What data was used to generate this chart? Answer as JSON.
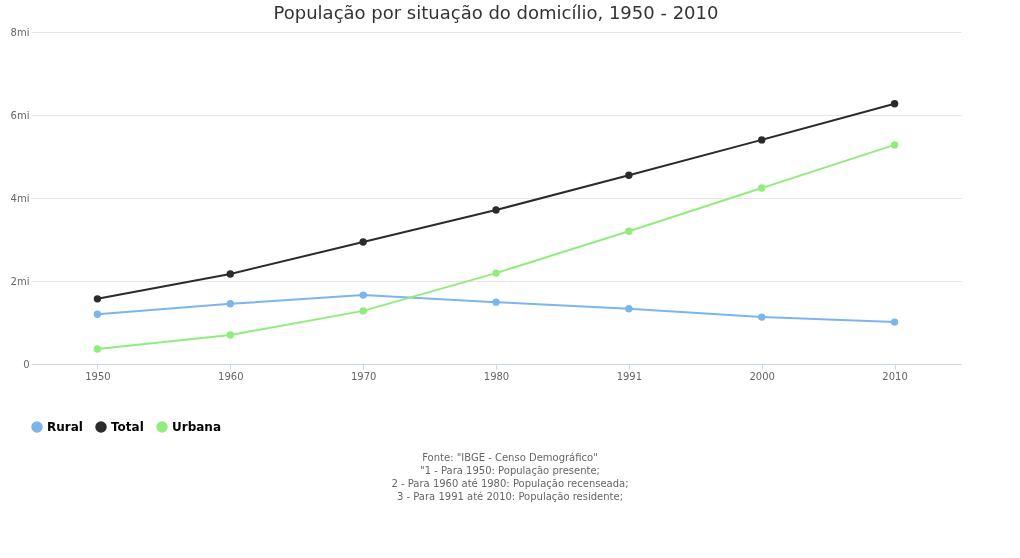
{
  "chart_data": {
    "type": "line",
    "title": "População por situação do domicílio, 1950 - 2010",
    "categories": [
      "1950",
      "1960",
      "1970",
      "1980",
      "1991",
      "2000",
      "2010"
    ],
    "series": [
      {
        "name": "Rural",
        "color": "#7cb5ec",
        "values": [
          1.2,
          1.45,
          1.66,
          1.49,
          1.33,
          1.13,
          1.01
        ]
      },
      {
        "name": "Total",
        "color": "#2b2b2b",
        "values": [
          1.57,
          2.17,
          2.94,
          3.71,
          4.55,
          5.4,
          6.27
        ]
      },
      {
        "name": "Urbana",
        "color": "#90ed7d",
        "values": [
          0.36,
          0.7,
          1.28,
          2.19,
          3.2,
          4.24,
          5.28
        ]
      }
    ],
    "ylim": [
      0,
      8
    ],
    "yticks": [
      0,
      {
        "value": 2,
        "label": "2mi"
      },
      {
        "value": 4,
        "label": "4mi"
      },
      {
        "value": 6,
        "label": "6mi"
      },
      {
        "value": 8,
        "label": "8mi"
      }
    ],
    "grid": "y",
    "legend": "bottom",
    "marker": "circle",
    "annotations": [
      "Fonte: \"IBGE - Censo Demográfico\"",
      "\"1 - Para 1950: População presente;",
      "2 - Para 1960 até 1980: População recenseada;",
      "3 - Para 1991 até 2010: População residente;"
    ]
  }
}
